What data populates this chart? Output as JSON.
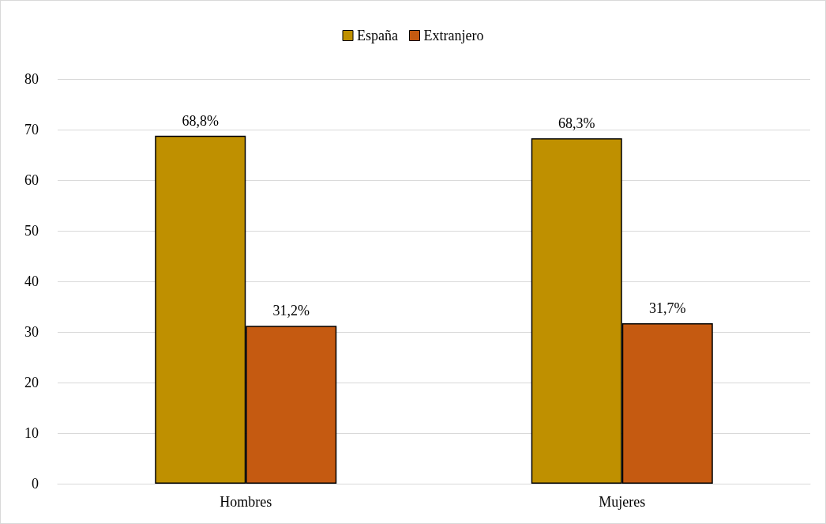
{
  "chart_data": {
    "type": "bar",
    "categories": [
      "Hombres",
      "Mujeres"
    ],
    "series": [
      {
        "name": "España",
        "color": "#bf9000",
        "values": [
          68.8,
          68.3
        ],
        "value_labels": [
          "68,8%",
          "68,3%"
        ]
      },
      {
        "name": "Extranjero",
        "color": "#c55a11",
        "values": [
          31.2,
          31.7
        ],
        "value_labels": [
          "31,2%",
          "31,7%"
        ]
      }
    ],
    "ylim": [
      0,
      80
    ],
    "yticks": [
      0,
      10,
      20,
      30,
      40,
      50,
      60,
      70,
      80
    ],
    "grid": "y",
    "legend": "top"
  }
}
